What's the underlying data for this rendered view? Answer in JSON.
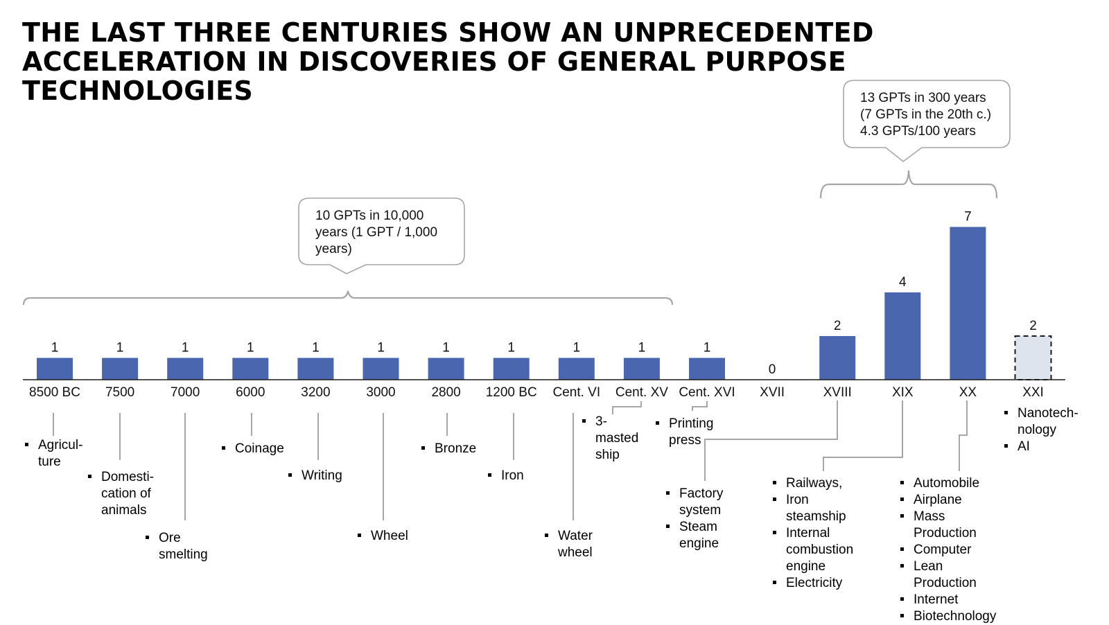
{
  "title": "THE LAST THREE CENTURIES SHOW AN UNPRECEDENTED ACCELERATION IN DISCOVERIES OF GENERAL PURPOSE TECHNOLOGIES",
  "callouts": {
    "left": [
      "10 GPTs in 10,000",
      "years (1 GPT / 1,000",
      "years)"
    ],
    "right": [
      "13 GPTs in 300 years",
      "(7 GPTs in the 20th c.)",
      "4.3 GPTs/100 years"
    ]
  },
  "colors": {
    "bar": "#4a66ae",
    "projected_fill": "#dde4ee",
    "projected_stroke": "#1a1a1a",
    "bracket": "#a6a6a6",
    "axis": "#1a1a1a"
  },
  "chart_data": {
    "type": "bar",
    "categories": [
      "8500 BC",
      "7500",
      "7000",
      "6000",
      "3200",
      "3000",
      "2800",
      "1200 BC",
      "Cent. VI",
      "Cent. XV",
      "Cent. XVI",
      "XVII",
      "XVIII",
      "XIX",
      "XX",
      "XXI"
    ],
    "values": [
      1,
      1,
      1,
      1,
      1,
      1,
      1,
      1,
      1,
      1,
      1,
      0,
      2,
      4,
      7,
      2
    ],
    "projected_index": 15,
    "ylim": [
      0,
      7
    ],
    "title": "",
    "xlabel": "",
    "ylabel": "",
    "technologies": [
      [
        "Agricul-",
        "ture"
      ],
      [
        "Domesti-",
        "cation of",
        "animals"
      ],
      [
        "Ore",
        "smelting"
      ],
      [
        "Coinage"
      ],
      [
        "Writing"
      ],
      [
        "Wheel"
      ],
      [
        "Bronze"
      ],
      [
        "Iron"
      ],
      [
        "Water",
        "wheel"
      ],
      [
        "3-",
        "masted",
        "ship"
      ],
      [
        "Printing",
        "press"
      ],
      [
        "Factory",
        "system"
      ],
      [
        "Steam",
        "engine"
      ],
      [
        "Railways,"
      ],
      [
        "Iron steamship"
      ],
      [
        "Internal",
        "combustion",
        "engine"
      ],
      [
        "Electricity"
      ],
      [
        "Automobile"
      ],
      [
        "Airplane"
      ],
      [
        "Mass Production"
      ],
      [
        "Computer"
      ],
      [
        "Lean Production"
      ],
      [
        "Internet"
      ],
      [
        "Biotechnology"
      ],
      [
        "Nanotech-",
        "nology"
      ],
      [
        "AI"
      ]
    ]
  }
}
